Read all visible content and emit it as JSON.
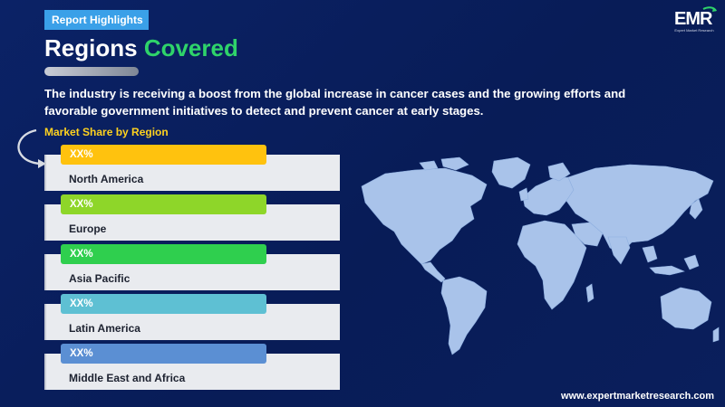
{
  "header": {
    "tag": "Report Highlights",
    "title_main": "Regions",
    "title_accent": "Covered"
  },
  "intro": "The industry is receiving a boost from the global increase in cancer cases and the growing efforts and favorable government initiatives  to detect and prevent cancer at early stages.",
  "market_share_label": "Market Share by Region",
  "regions": [
    {
      "value": "XX%",
      "name": "North America",
      "color": "#ffc20e"
    },
    {
      "value": "XX%",
      "name": "Europe",
      "color": "#8ed629"
    },
    {
      "value": "XX%",
      "name": "Asia Pacific",
      "color": "#2fcf4e"
    },
    {
      "value": "XX%",
      "name": "Latin America",
      "color": "#5ec0d3"
    },
    {
      "value": "XX%",
      "name": "Middle East and Africa",
      "color": "#5b8fd3"
    }
  ],
  "logo": {
    "mark": "EMR",
    "subtitle": "Expert Market Research"
  },
  "footer": {
    "website": "www.expertmarketresearch.com"
  },
  "colors": {
    "background": "#0b2266",
    "accent_green": "#2fd36a",
    "label_yellow": "#ffd21f",
    "map_fill": "#a9c3ea"
  },
  "icons": {
    "arrow": "curved-arrow-icon",
    "map": "world-map-icon",
    "logo": "emr-logo"
  }
}
